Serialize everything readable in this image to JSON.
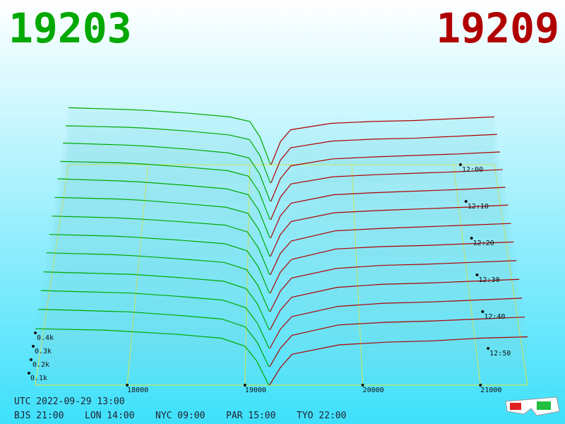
{
  "chart_data": {
    "type": "depth-3d",
    "best_bid": 19203,
    "best_ask": 19209,
    "bid_color": "#00a800",
    "ask_color": "#b00000",
    "grid_color": "#e8e830",
    "xlim": [
      17220,
      21400
    ],
    "xticks": [
      18000,
      19000,
      20000,
      21000
    ],
    "tlim": [
      0,
      60
    ],
    "tticks": [
      {
        "value": 0,
        "label": "12:00"
      },
      {
        "value": 10,
        "label": "12:10"
      },
      {
        "value": 20,
        "label": "12:20"
      },
      {
        "value": 30,
        "label": "12:30"
      },
      {
        "value": 40,
        "label": "12:40"
      },
      {
        "value": 50,
        "label": "12:50"
      }
    ],
    "zticks": [
      {
        "value": 100,
        "label": "0.1k"
      },
      {
        "value": 200,
        "label": "0.2k"
      },
      {
        "value": 300,
        "label": "0.3k"
      },
      {
        "value": 400,
        "label": "0.4k"
      }
    ],
    "bid_prices": [
      17220,
      17800,
      18000,
      18400,
      18800,
      19000,
      19100,
      19203
    ],
    "ask_prices": [
      19209,
      19300,
      19400,
      19800,
      20200,
      20600,
      21000,
      21400
    ],
    "slices": [
      {
        "t": 0,
        "bid": [
          620,
          600,
          590,
          560,
          520,
          470,
          300,
          0
        ],
        "ask": [
          0,
          250,
          380,
          450,
          470,
          480,
          500,
          520
        ]
      },
      {
        "t": 5,
        "bid": [
          600,
          585,
          575,
          545,
          505,
          455,
          290,
          0
        ],
        "ask": [
          0,
          240,
          370,
          440,
          460,
          470,
          490,
          510
        ]
      },
      {
        "t": 10,
        "bid": [
          590,
          570,
          560,
          530,
          490,
          440,
          280,
          0
        ],
        "ask": [
          0,
          230,
          360,
          430,
          450,
          465,
          480,
          500
        ]
      },
      {
        "t": 15,
        "bid": [
          570,
          555,
          545,
          515,
          480,
          425,
          270,
          0
        ],
        "ask": [
          0,
          220,
          350,
          420,
          440,
          455,
          470,
          490
        ]
      },
      {
        "t": 20,
        "bid": [
          560,
          540,
          530,
          500,
          465,
          410,
          260,
          0
        ],
        "ask": [
          0,
          210,
          330,
          410,
          430,
          445,
          460,
          480
        ]
      },
      {
        "t": 25,
        "bid": [
          540,
          525,
          515,
          485,
          450,
          395,
          250,
          0
        ],
        "ask": [
          0,
          200,
          320,
          400,
          420,
          435,
          450,
          470
        ]
      },
      {
        "t": 30,
        "bid": [
          520,
          505,
          495,
          470,
          440,
          380,
          240,
          0
        ],
        "ask": [
          0,
          190,
          300,
          390,
          410,
          425,
          440,
          455
        ]
      },
      {
        "t": 35,
        "bid": [
          505,
          490,
          480,
          455,
          425,
          365,
          230,
          0
        ],
        "ask": [
          0,
          180,
          290,
          380,
          400,
          410,
          425,
          440
        ]
      },
      {
        "t": 40,
        "bid": [
          490,
          475,
          465,
          440,
          410,
          350,
          220,
          0
        ],
        "ask": [
          0,
          170,
          280,
          360,
          385,
          395,
          410,
          425
        ]
      },
      {
        "t": 45,
        "bid": [
          470,
          455,
          450,
          425,
          395,
          335,
          210,
          0
        ],
        "ask": [
          0,
          160,
          265,
          345,
          370,
          380,
          395,
          410
        ]
      },
      {
        "t": 50,
        "bid": [
          455,
          440,
          435,
          410,
          380,
          320,
          200,
          0
        ],
        "ask": [
          0,
          150,
          250,
          330,
          355,
          365,
          380,
          395
        ]
      },
      {
        "t": 55,
        "bid": [
          440,
          425,
          420,
          395,
          365,
          305,
          190,
          0
        ],
        "ask": [
          0,
          140,
          240,
          320,
          340,
          350,
          365,
          380
        ]
      },
      {
        "t": 60,
        "bid": [
          420,
          410,
          400,
          380,
          350,
          290,
          180,
          0
        ],
        "ask": [
          0,
          130,
          230,
          300,
          320,
          330,
          350,
          360
        ]
      }
    ],
    "clock": {
      "utc": "UTC 2022-09-29 13:00",
      "zones": [
        "BJS 21:00",
        "LON 14:00",
        "NYC 09:00",
        "PAR 15:00",
        "TYO 22:00"
      ]
    }
  }
}
